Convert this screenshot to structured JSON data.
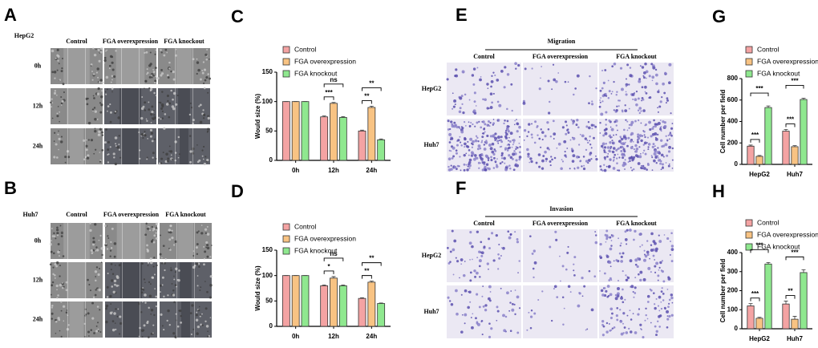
{
  "panels": [
    {
      "label": "A",
      "cell": "HepG2",
      "columns": [
        "Control",
        "FGA overexpression",
        "FGA knockout"
      ],
      "rows": [
        "0h",
        "12h",
        "24h"
      ]
    },
    {
      "label": "B",
      "cell": "Huh7",
      "columns": [
        "Control",
        "FGA overexpression",
        "FGA knockout"
      ],
      "rows": [
        "0h",
        "12h",
        "24h"
      ]
    },
    {
      "label": "E",
      "title": "Migration",
      "columns": [
        "Control",
        "FGA overexpression",
        "FGA knockout"
      ],
      "rows": [
        "HepG2",
        "Huh7"
      ]
    },
    {
      "label": "F",
      "title": "Invasion",
      "columns": [
        "Control",
        "FGA overexpression",
        "FGA knockout"
      ],
      "rows": [
        "HepG2",
        "Huh7"
      ]
    }
  ],
  "chart_data": [
    {
      "type": "bar",
      "panel_label": "C",
      "ylabel": "Would size (%)",
      "categories": [
        "0h",
        "12h",
        "24h"
      ],
      "series": [
        {
          "name": "Control",
          "color": "#f4a3a3",
          "values": [
            100,
            74,
            50
          ],
          "errors": [
            0,
            1.5,
            1.5
          ]
        },
        {
          "name": "FGA overexpression",
          "color": "#f8c383",
          "values": [
            100,
            97,
            90
          ],
          "errors": [
            0,
            1.5,
            2
          ]
        },
        {
          "name": "FGA knockout",
          "color": "#8fe88f",
          "values": [
            100,
            73,
            35
          ],
          "errors": [
            0,
            1.5,
            1.5
          ]
        }
      ],
      "ylim": [
        0,
        150
      ],
      "yticks": [
        0,
        50,
        100,
        150
      ],
      "significance": [
        null,
        [
          "***",
          "ns"
        ],
        [
          "**",
          "**"
        ]
      ]
    },
    {
      "type": "bar",
      "panel_label": "D",
      "ylabel": "Would size (%)",
      "categories": [
        "0h",
        "12h",
        "24h"
      ],
      "series": [
        {
          "name": "Control",
          "color": "#f4a3a3",
          "values": [
            100,
            80,
            55
          ],
          "errors": [
            0,
            1.5,
            1.5
          ]
        },
        {
          "name": "FGA overexpression",
          "color": "#f8c383",
          "values": [
            100,
            95,
            87
          ],
          "errors": [
            0,
            3,
            2
          ]
        },
        {
          "name": "FGA knockout",
          "color": "#8fe88f",
          "values": [
            100,
            80,
            45
          ],
          "errors": [
            0,
            1.5,
            1
          ]
        }
      ],
      "ylim": [
        0,
        150
      ],
      "yticks": [
        0,
        50,
        100,
        150
      ],
      "significance": [
        null,
        [
          "*",
          "ns"
        ],
        [
          "**",
          "**"
        ]
      ]
    },
    {
      "type": "bar",
      "panel_label": "G",
      "ylabel": "Cell number per field",
      "categories": [
        "HepG2",
        "Huh7"
      ],
      "series": [
        {
          "name": "Control",
          "color": "#f4a3a3",
          "values": [
            170,
            310
          ],
          "errors": [
            10,
            15
          ]
        },
        {
          "name": "FGA overexpression",
          "color": "#f8c383",
          "values": [
            75,
            165
          ],
          "errors": [
            8,
            10
          ]
        },
        {
          "name": "FGA knockout",
          "color": "#8fe88f",
          "values": [
            530,
            605
          ],
          "errors": [
            15,
            12
          ]
        }
      ],
      "ylim": [
        0,
        800
      ],
      "yticks": [
        0,
        200,
        400,
        600,
        800
      ],
      "significance": [
        [
          "***",
          "***"
        ],
        [
          "***",
          "***"
        ]
      ]
    },
    {
      "type": "bar",
      "panel_label": "H",
      "ylabel": "Cell number per field",
      "categories": [
        "HepG2",
        "Huh7"
      ],
      "series": [
        {
          "name": "Control",
          "color": "#f4a3a3",
          "values": [
            120,
            130
          ],
          "errors": [
            12,
            15
          ]
        },
        {
          "name": "FGA overexpression",
          "color": "#f8c383",
          "values": [
            55,
            50
          ],
          "errors": [
            5,
            15
          ]
        },
        {
          "name": "FGA knockout",
          "color": "#8fe88f",
          "values": [
            340,
            295
          ],
          "errors": [
            8,
            15
          ]
        }
      ],
      "ylim": [
        0,
        400
      ],
      "yticks": [
        0,
        100,
        200,
        300,
        400
      ],
      "significance": [
        [
          "***",
          "***"
        ],
        [
          "**",
          "***"
        ]
      ]
    }
  ]
}
